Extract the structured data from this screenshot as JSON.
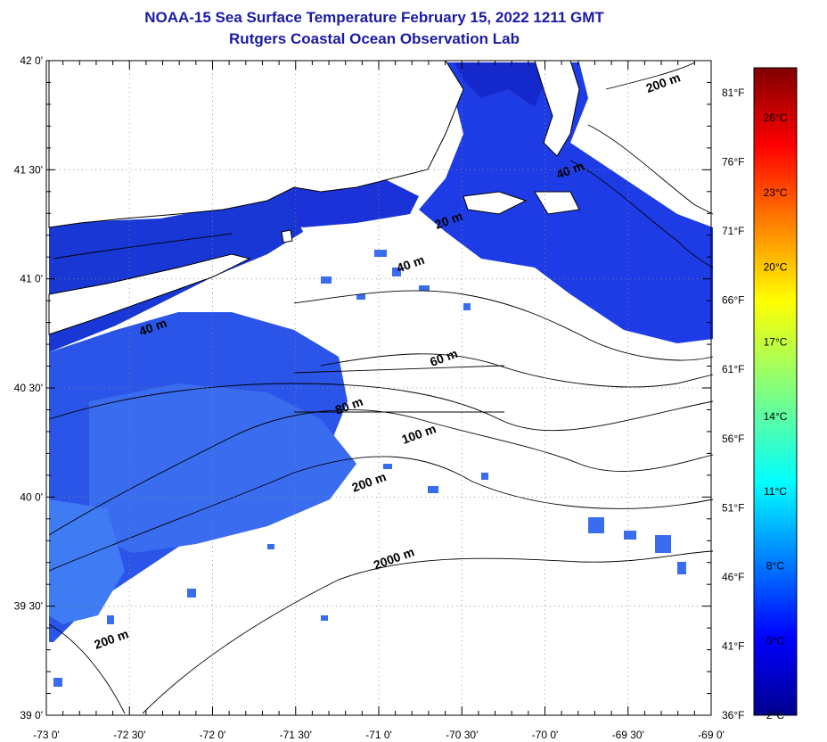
{
  "header": {
    "title": "NOAA-15 Sea Surface Temperature February 15, 2022 1211 GMT",
    "subtitle": "Rutgers Coastal Ocean Observation Lab"
  },
  "map": {
    "lon_range": [
      -73.0,
      -69.0
    ],
    "lat_range": [
      39.0,
      42.0
    ],
    "lon_ticks": [
      {
        "value": -73.0,
        "label": "-73 0'"
      },
      {
        "value": -72.5,
        "label": "-72 30'"
      },
      {
        "value": -72.0,
        "label": "-72 0'"
      },
      {
        "value": -71.5,
        "label": "-71 30'"
      },
      {
        "value": -71.0,
        "label": "-71 0'"
      },
      {
        "value": -70.5,
        "label": "-70 30'"
      },
      {
        "value": -70.0,
        "label": "-70 0'"
      },
      {
        "value": -69.5,
        "label": "-69 30'"
      },
      {
        "value": -69.0,
        "label": "-69 0'"
      }
    ],
    "lat_ticks": [
      {
        "value": 42.0,
        "label": "42 0'"
      },
      {
        "value": 41.5,
        "label": "41 30'"
      },
      {
        "value": 41.0,
        "label": "41 0'"
      },
      {
        "value": 40.5,
        "label": "40 30'"
      },
      {
        "value": 40.0,
        "label": "40 0'"
      },
      {
        "value": 39.5,
        "label": "39 30'"
      },
      {
        "value": 39.0,
        "label": "39 0'"
      }
    ],
    "fahrenheit_ticks": [
      "81°F",
      "76°F",
      "71°F",
      "66°F",
      "61°F",
      "56°F",
      "51°F",
      "46°F",
      "41°F",
      "36°F"
    ],
    "isobath_labels": [
      {
        "text": "200 m",
        "lon": -69.28,
        "lat": 41.88
      },
      {
        "text": "40 m",
        "lon": -69.84,
        "lat": 41.48
      },
      {
        "text": "20 m",
        "lon": -70.57,
        "lat": 41.25
      },
      {
        "text": "40 m",
        "lon": -70.8,
        "lat": 41.05
      },
      {
        "text": "40 m",
        "lon": -72.35,
        "lat": 40.76
      },
      {
        "text": "60 m",
        "lon": -70.6,
        "lat": 40.62
      },
      {
        "text": "80 m",
        "lon": -71.17,
        "lat": 40.4
      },
      {
        "text": "100 m",
        "lon": -70.75,
        "lat": 40.27
      },
      {
        "text": "200 m",
        "lon": -71.05,
        "lat": 40.05
      },
      {
        "text": "2000 m",
        "lon": -70.9,
        "lat": 39.7
      },
      {
        "text": "200 m",
        "lon": -72.6,
        "lat": 39.33
      }
    ]
  },
  "colorbar": {
    "labels": [
      "26°C",
      "23°C",
      "20°C",
      "17°C",
      "14°C",
      "11°C",
      "8°C",
      "5°C",
      "2°C"
    ],
    "colors": [
      "#00008f",
      "#0000ff",
      "#0080ff",
      "#00ffff",
      "#80ff80",
      "#ffff00",
      "#ff8000",
      "#ff0000",
      "#800000"
    ]
  }
}
